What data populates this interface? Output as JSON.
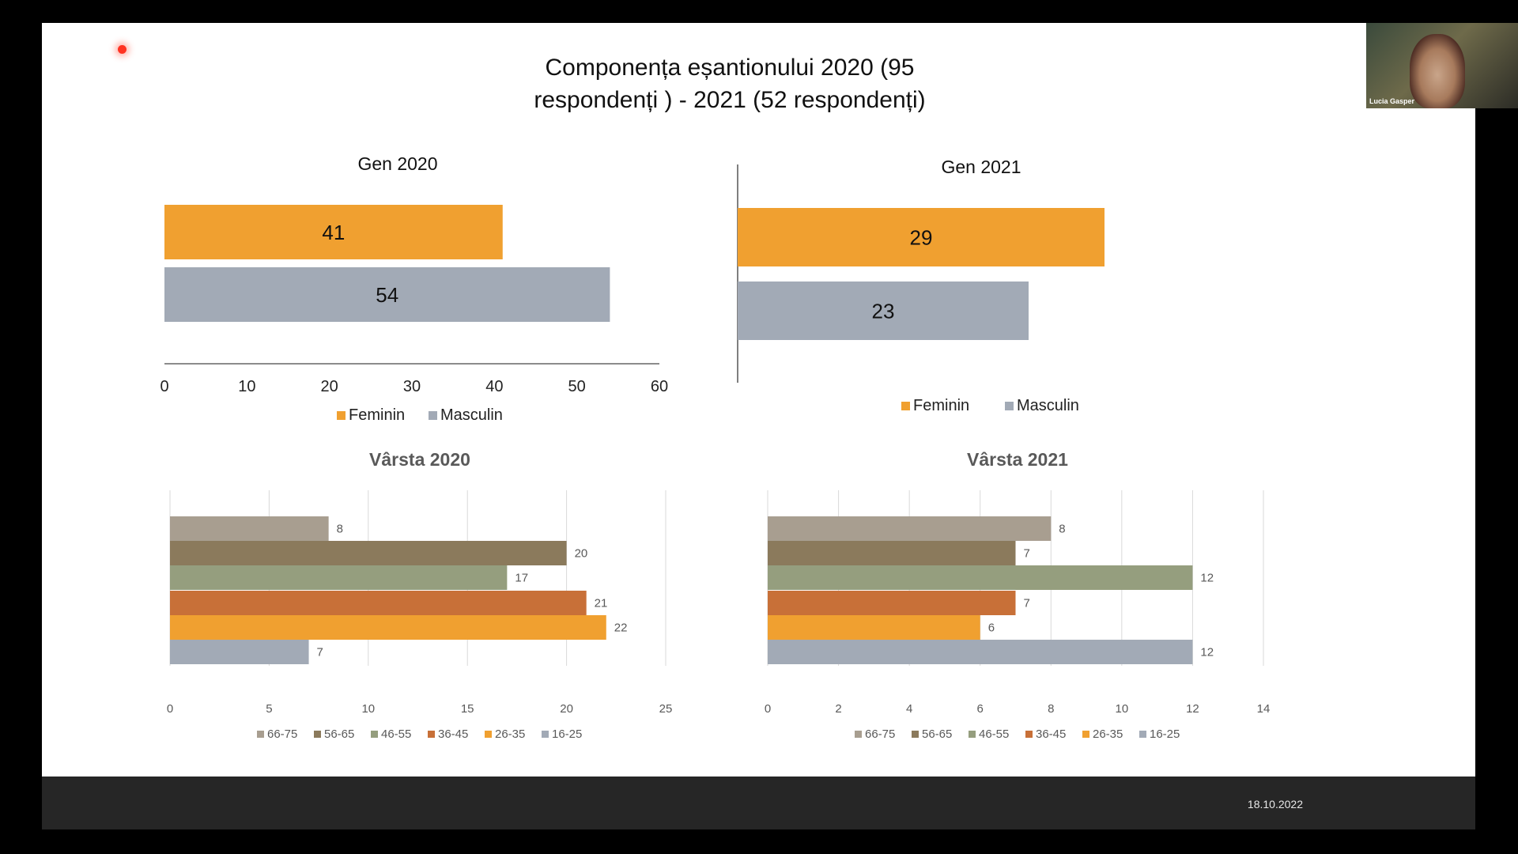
{
  "slide": {
    "title_line1": "Componența eșantionului  2020 (95",
    "title_line2": "respondenți ) - 2021 (52 respondenți)",
    "date": "18.10.2022"
  },
  "webcam": {
    "name": "Lucia Gasper"
  },
  "colors": {
    "Feminin": "#F0A030",
    "Masculin": "#A2AAB6",
    "66-75": "#A89E90",
    "56-65": "#8B7A5C",
    "46-55": "#959E7E",
    "36-45": "#C87038",
    "26-35": "#F0A030",
    "16-25": "#A2AAB6"
  },
  "chart_data": [
    {
      "type": "bar",
      "orientation": "horizontal",
      "title": "Gen 2020",
      "categories": [
        "Feminin",
        "Masculin"
      ],
      "values": [
        41,
        54
      ],
      "xlim": [
        0,
        60
      ],
      "ticks": [
        0,
        10,
        20,
        30,
        40,
        50,
        60
      ],
      "tick_labels": [
        "0",
        "10",
        "20",
        "30",
        "40",
        "50",
        "60"
      ],
      "legend": [
        "Feminin",
        "Masculin"
      ],
      "legend_position": "bottom",
      "data_labels": "inside-center"
    },
    {
      "type": "bar",
      "orientation": "horizontal",
      "title": "Gen 2021",
      "categories": [
        "Feminin",
        "Masculin"
      ],
      "values": [
        29,
        23
      ],
      "legend": [
        "Feminin",
        "Masculin"
      ],
      "legend_position": "bottom",
      "data_labels": "inside-center"
    },
    {
      "type": "bar",
      "orientation": "horizontal",
      "title": "Vârsta 2020",
      "categories": [
        "66-75",
        "56-65",
        "46-55",
        "36-45",
        "26-35",
        "16-25"
      ],
      "values": [
        8,
        20,
        17,
        21,
        22,
        7
      ],
      "xlim": [
        0,
        25
      ],
      "ticks": [
        0,
        5,
        10,
        15,
        20,
        25
      ],
      "tick_labels": [
        "0",
        "5",
        "10",
        "15",
        "20",
        "25"
      ],
      "grid": true,
      "legend": [
        "66-75",
        "56-65",
        "46-55",
        "36-45",
        "26-35",
        "16-25"
      ],
      "legend_position": "bottom",
      "data_labels": "outside-end"
    },
    {
      "type": "bar",
      "orientation": "horizontal",
      "title": "Vârsta 2021",
      "categories": [
        "66-75",
        "56-65",
        "46-55",
        "36-45",
        "26-35",
        "16-25"
      ],
      "values": [
        8,
        7,
        12,
        7,
        6,
        12
      ],
      "xlim": [
        0,
        14
      ],
      "ticks": [
        0,
        2,
        4,
        6,
        8,
        10,
        12,
        14
      ],
      "tick_labels": [
        "0",
        "2",
        "4",
        "6",
        "8",
        "10",
        "12",
        "14"
      ],
      "grid": true,
      "legend": [
        "66-75",
        "56-65",
        "46-55",
        "36-45",
        "26-35",
        "16-25"
      ],
      "legend_position": "bottom",
      "data_labels": "outside-end"
    }
  ]
}
